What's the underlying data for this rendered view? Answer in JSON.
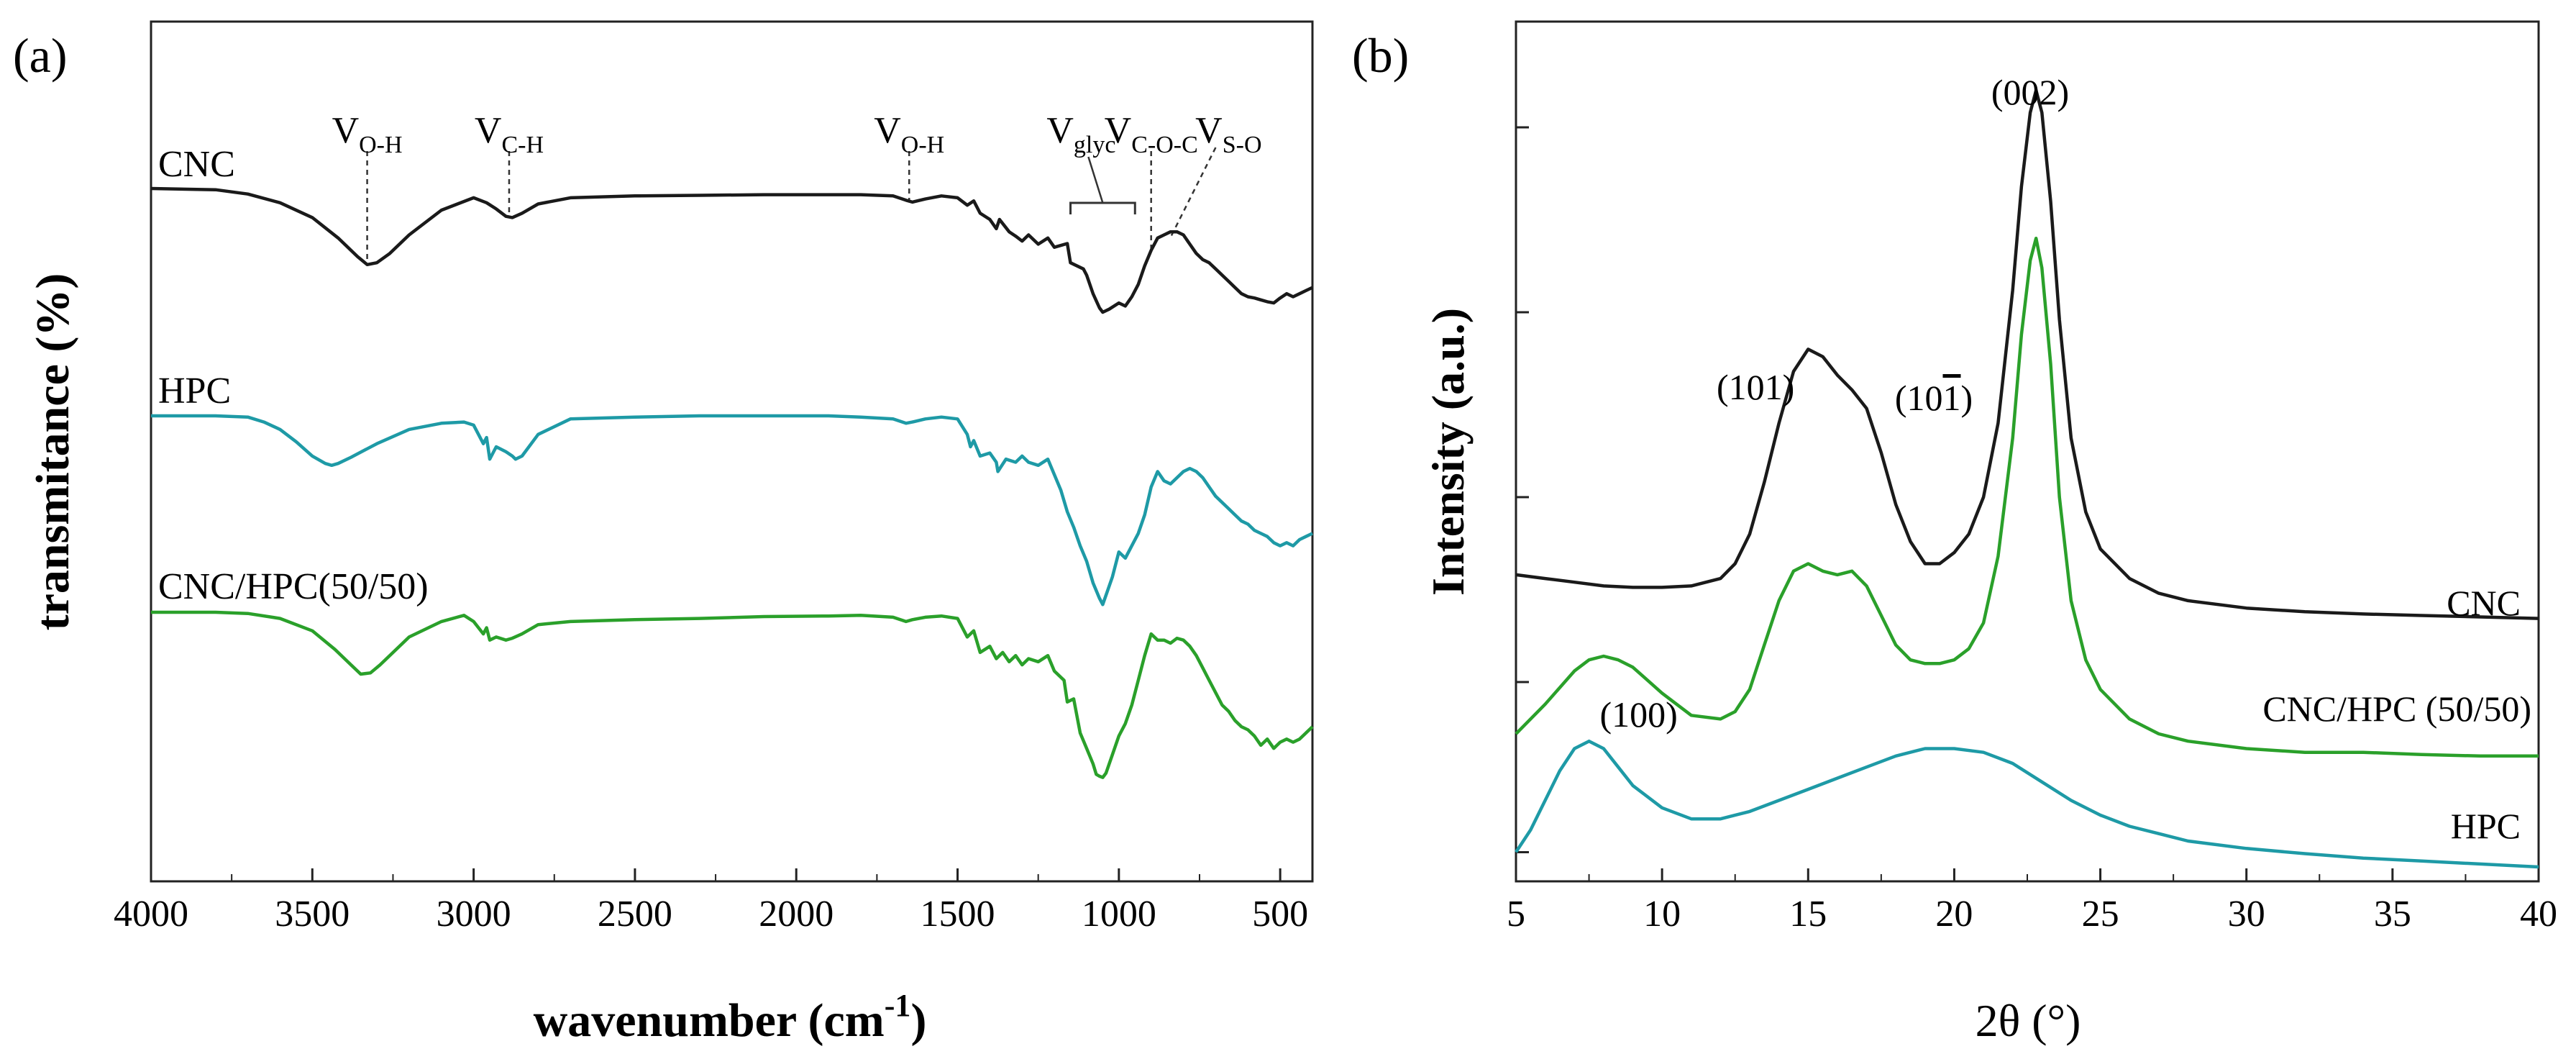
{
  "chart_data": [
    {
      "panel": "(a)",
      "type": "line",
      "xlabel_main": "wavenumber (cm",
      "xlabel_sup": "-1",
      "xlabel_close": ")",
      "ylabel": "transmitance (%)",
      "xlim": [
        4000,
        400
      ],
      "x_ticks": [
        4000,
        3500,
        3000,
        2500,
        2000,
        1500,
        1000,
        500
      ],
      "x_tick_labels": [
        "4000",
        "3500",
        "3000",
        "2500",
        "2000",
        "1500",
        "1000",
        "500"
      ],
      "color_scheme": {
        "CNC": "#1a1a1a",
        "HPC": "#1e9aa6",
        "CNC/HPC(50/50)": "#2aa02a"
      },
      "series": [
        {
          "name": "CNC",
          "label": "CNC",
          "color": "#1a1a1a",
          "offset": 0.0,
          "x": [
            4000,
            3800,
            3700,
            3600,
            3500,
            3420,
            3360,
            3330,
            3300,
            3260,
            3200,
            3100,
            3000,
            2960,
            2930,
            2900,
            2880,
            2850,
            2800,
            2700,
            2500,
            2300,
            2100,
            1900,
            1800,
            1700,
            1660,
            1640,
            1600,
            1550,
            1500,
            1470,
            1450,
            1430,
            1400,
            1380,
            1370,
            1340,
            1320,
            1300,
            1280,
            1250,
            1220,
            1200,
            1160,
            1150,
            1110,
            1100,
            1080,
            1060,
            1050,
            1030,
            1000,
            980,
            960,
            940,
            920,
            900,
            880,
            860,
            840,
            820,
            800,
            780,
            760,
            740,
            720,
            700,
            680,
            660,
            640,
            620,
            600,
            580,
            560,
            540,
            520,
            500,
            480,
            460,
            440,
            420,
            400
          ],
          "y": [
            97.5,
            97.3,
            96.6,
            95.2,
            92.8,
            89.5,
            86.5,
            85.2,
            85.5,
            87.0,
            90.0,
            94.0,
            96.0,
            95.2,
            94.2,
            93.0,
            92.8,
            93.5,
            95.0,
            96.0,
            96.3,
            96.4,
            96.5,
            96.5,
            96.5,
            96.3,
            95.6,
            95.3,
            95.8,
            96.3,
            96.0,
            94.8,
            95.5,
            93.5,
            92.5,
            91.0,
            92.5,
            90.5,
            89.8,
            89.0,
            90.0,
            88.5,
            89.5,
            88.0,
            88.6,
            85.5,
            84.5,
            83.5,
            80.5,
            78.2,
            77.5,
            78.0,
            79.0,
            78.5,
            80.0,
            82.0,
            85.0,
            87.5,
            89.5,
            90.0,
            90.5,
            90.5,
            90.0,
            88.5,
            87.0,
            86.0,
            85.5,
            84.5,
            83.5,
            82.5,
            81.5,
            80.5,
            80.0,
            79.8,
            79.5,
            79.2,
            79.0,
            79.8,
            80.5,
            80.0,
            80.5,
            81.0,
            81.5
          ]
        },
        {
          "name": "HPC",
          "label": "HPC",
          "color": "#1e9aa6",
          "offset": 0.0,
          "x": [
            4000,
            3800,
            3700,
            3650,
            3600,
            3550,
            3500,
            3460,
            3440,
            3420,
            3380,
            3300,
            3200,
            3100,
            3030,
            3000,
            2970,
            2960,
            2950,
            2930,
            2900,
            2880,
            2870,
            2850,
            2800,
            2700,
            2500,
            2300,
            2100,
            1900,
            1800,
            1700,
            1660,
            1640,
            1600,
            1550,
            1500,
            1470,
            1460,
            1450,
            1430,
            1400,
            1380,
            1375,
            1350,
            1320,
            1300,
            1280,
            1250,
            1220,
            1200,
            1180,
            1160,
            1140,
            1120,
            1100,
            1080,
            1060,
            1050,
            1040,
            1020,
            1000,
            980,
            960,
            940,
            920,
            900,
            880,
            860,
            840,
            820,
            800,
            780,
            760,
            740,
            720,
            700,
            680,
            660,
            640,
            620,
            600,
            580,
            560,
            540,
            520,
            500,
            480,
            460,
            440,
            420,
            400
          ],
          "y": [
            74.0,
            74.0,
            73.8,
            73.0,
            71.8,
            69.8,
            67.5,
            66.3,
            66.0,
            66.3,
            67.3,
            69.5,
            71.8,
            72.8,
            73.0,
            72.5,
            69.5,
            70.5,
            67.0,
            69.0,
            68.2,
            67.5,
            67.0,
            67.5,
            71.0,
            73.5,
            73.8,
            74.0,
            74.0,
            74.0,
            73.8,
            73.5,
            72.8,
            73.0,
            73.5,
            73.8,
            73.5,
            71.0,
            69.0,
            70.0,
            67.5,
            68.0,
            66.5,
            65.0,
            67.0,
            66.5,
            67.5,
            66.5,
            66.0,
            67.0,
            64.5,
            62.0,
            58.5,
            56.0,
            53.0,
            50.5,
            47.0,
            44.5,
            43.5,
            45.0,
            48.0,
            52.0,
            51.0,
            53.0,
            55.0,
            58.0,
            62.5,
            65.0,
            63.5,
            63.0,
            64.0,
            65.0,
            65.5,
            65.0,
            64.0,
            62.5,
            61.0,
            60.0,
            59.0,
            58.0,
            57.0,
            56.5,
            55.5,
            55.0,
            54.5,
            53.5,
            53.0,
            53.5,
            53.0,
            54.0,
            54.5,
            55.0
          ]
        },
        {
          "name": "CNC/HPC(50/50)",
          "label": "CNC/HPC(50/50)",
          "color": "#2aa02a",
          "offset": 0.0,
          "x": [
            4000,
            3800,
            3700,
            3600,
            3500,
            3430,
            3380,
            3350,
            3320,
            3290,
            3250,
            3200,
            3100,
            3030,
            3000,
            2970,
            2960,
            2950,
            2930,
            2900,
            2880,
            2850,
            2800,
            2700,
            2500,
            2300,
            2100,
            1900,
            1800,
            1700,
            1660,
            1640,
            1600,
            1550,
            1500,
            1470,
            1450,
            1430,
            1400,
            1380,
            1360,
            1340,
            1320,
            1300,
            1280,
            1250,
            1220,
            1200,
            1170,
            1160,
            1140,
            1120,
            1100,
            1080,
            1070,
            1060,
            1050,
            1040,
            1020,
            1000,
            980,
            960,
            940,
            920,
            900,
            880,
            860,
            840,
            820,
            800,
            780,
            760,
            740,
            720,
            700,
            680,
            660,
            640,
            620,
            600,
            580,
            560,
            540,
            520,
            500,
            480,
            460,
            440,
            420,
            400
          ],
          "y": [
            51.0,
            51.0,
            50.8,
            50.0,
            48.0,
            45.0,
            42.5,
            41.0,
            41.2,
            42.5,
            44.5,
            47.0,
            49.5,
            50.5,
            49.5,
            47.5,
            48.5,
            46.5,
            47.0,
            46.5,
            46.8,
            47.5,
            49.0,
            49.5,
            49.8,
            50.0,
            50.3,
            50.4,
            50.5,
            50.2,
            49.5,
            49.8,
            50.2,
            50.4,
            50.0,
            47.0,
            48.0,
            44.5,
            45.5,
            43.5,
            44.5,
            43.0,
            44.0,
            42.5,
            43.5,
            43.0,
            44.0,
            41.5,
            40.0,
            36.5,
            37.0,
            31.5,
            29.0,
            26.5,
            24.8,
            24.5,
            24.3,
            25.0,
            28.0,
            31.0,
            33.0,
            36.0,
            40.0,
            44.0,
            47.5,
            46.5,
            46.5,
            46.0,
            46.8,
            46.5,
            45.5,
            44.0,
            42.0,
            40.0,
            38.0,
            36.0,
            35.0,
            33.5,
            32.5,
            32.0,
            31.0,
            29.5,
            30.5,
            29.0,
            30.0,
            30.5,
            30.0,
            30.5,
            31.5,
            32.5
          ]
        }
      ],
      "annotations": [
        {
          "label": "V",
          "sub": "O-H",
          "x": 3330
        },
        {
          "label": "V",
          "sub": "C-H",
          "x": 2890
        },
        {
          "label": "V",
          "sub": "O-H",
          "x": 1650
        },
        {
          "label": "V",
          "sub": "glyc",
          "x_range": [
            1150,
            950
          ]
        },
        {
          "label": "V",
          "sub": "C-O-C",
          "x": 900
        },
        {
          "label": "V",
          "sub": "S-O",
          "x": 830
        }
      ]
    },
    {
      "panel": "(b)",
      "type": "line",
      "xlabel": "2θ (°)",
      "ylabel": "Intensity (a.u.)",
      "xlim": [
        5,
        40
      ],
      "x_ticks": [
        5,
        10,
        15,
        20,
        25,
        30,
        35,
        40
      ],
      "x_tick_labels": [
        "5",
        "10",
        "15",
        "20",
        "25",
        "30",
        "35",
        "40"
      ],
      "series": [
        {
          "name": "CNC",
          "label": "CNC",
          "color": "#1a1a1a",
          "x": [
            5,
            6,
            7,
            8,
            9,
            10,
            11,
            12,
            12.5,
            13,
            13.5,
            14,
            14.5,
            15,
            15.5,
            16,
            16.5,
            17,
            17.5,
            18,
            18.5,
            19,
            19.5,
            20,
            20.5,
            21,
            21.5,
            22,
            22.3,
            22.6,
            22.8,
            23,
            23.3,
            23.6,
            24,
            24.5,
            25,
            26,
            27,
            28,
            30,
            32,
            34,
            36,
            38,
            40
          ],
          "y": [
            0.395,
            0.39,
            0.385,
            0.38,
            0.378,
            0.378,
            0.38,
            0.39,
            0.41,
            0.45,
            0.52,
            0.6,
            0.67,
            0.7,
            0.69,
            0.665,
            0.645,
            0.62,
            0.56,
            0.49,
            0.44,
            0.41,
            0.41,
            0.425,
            0.45,
            0.5,
            0.6,
            0.78,
            0.92,
            1.02,
            1.05,
            1.02,
            0.9,
            0.74,
            0.58,
            0.48,
            0.43,
            0.39,
            0.37,
            0.36,
            0.35,
            0.345,
            0.342,
            0.34,
            0.338,
            0.336
          ]
        },
        {
          "name": "CNC/HPC (50/50)",
          "label": "CNC/HPC (50/50)",
          "color": "#2aa02a",
          "x": [
            5,
            6,
            7,
            7.5,
            8,
            8.5,
            9,
            10,
            11,
            12,
            12.5,
            13,
            13.5,
            14,
            14.5,
            15,
            15.5,
            16,
            16.5,
            17,
            17.5,
            18,
            18.5,
            19,
            19.5,
            20,
            20.5,
            21,
            21.5,
            22,
            22.3,
            22.6,
            22.8,
            23,
            23.3,
            23.6,
            24,
            24.5,
            25,
            26,
            27,
            28,
            30,
            32,
            34,
            36,
            38,
            40
          ],
          "y": [
            0.18,
            0.22,
            0.265,
            0.28,
            0.285,
            0.28,
            0.27,
            0.235,
            0.205,
            0.2,
            0.21,
            0.24,
            0.3,
            0.36,
            0.4,
            0.41,
            0.4,
            0.395,
            0.4,
            0.38,
            0.34,
            0.3,
            0.28,
            0.275,
            0.275,
            0.28,
            0.295,
            0.33,
            0.42,
            0.58,
            0.72,
            0.82,
            0.85,
            0.81,
            0.68,
            0.5,
            0.36,
            0.28,
            0.24,
            0.2,
            0.18,
            0.17,
            0.16,
            0.155,
            0.155,
            0.152,
            0.15,
            0.15
          ]
        },
        {
          "name": "HPC",
          "label": "HPC",
          "color": "#1e9aa6",
          "x": [
            5,
            5.5,
            6,
            6.5,
            7,
            7.5,
            8,
            8.5,
            9,
            10,
            11,
            12,
            13,
            14,
            15,
            16,
            17,
            18,
            19,
            20,
            21,
            22,
            23,
            24,
            25,
            26,
            27,
            28,
            30,
            32,
            34,
            36,
            38,
            40
          ],
          "y": [
            0.02,
            0.05,
            0.09,
            0.13,
            0.16,
            0.17,
            0.16,
            0.135,
            0.11,
            0.08,
            0.065,
            0.065,
            0.075,
            0.09,
            0.105,
            0.12,
            0.135,
            0.15,
            0.16,
            0.16,
            0.155,
            0.14,
            0.115,
            0.09,
            0.07,
            0.055,
            0.045,
            0.035,
            0.025,
            0.018,
            0.012,
            0.008,
            0.004,
            0.0
          ]
        }
      ],
      "annotations": [
        {
          "label": "(002)",
          "x": 22.8
        },
        {
          "label": "(101)",
          "x": 15.0
        },
        {
          "label": "(10",
          "bar": "1",
          "close": ")",
          "x": 17.5
        },
        {
          "label": "(100)",
          "x": 7.5
        }
      ]
    }
  ],
  "panel_labels": {
    "a": "(a)",
    "b": "(b)"
  }
}
